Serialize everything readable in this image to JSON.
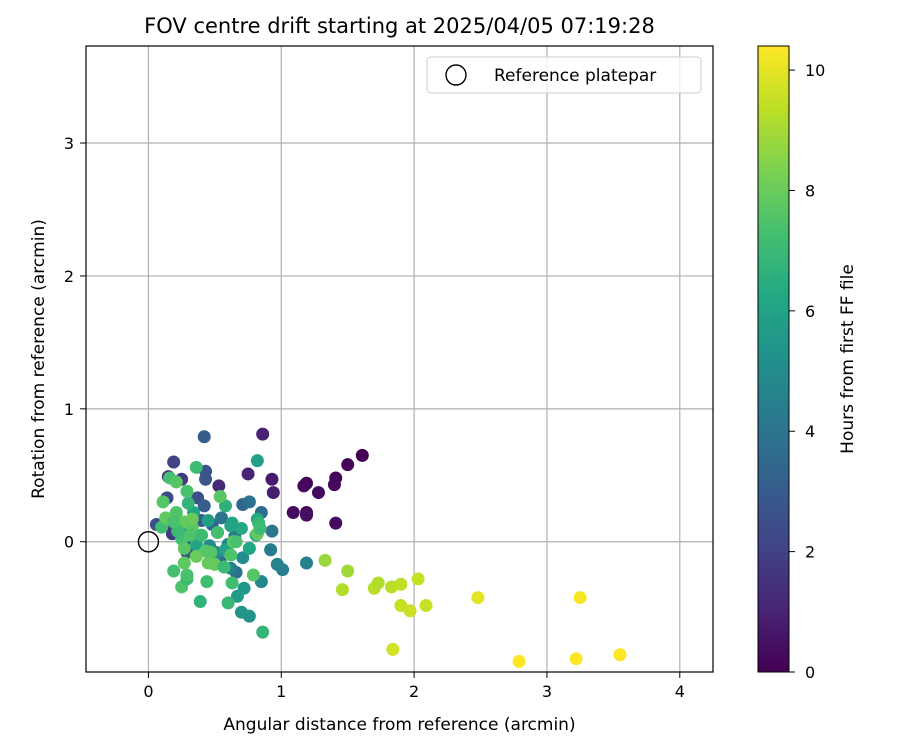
{
  "chart_data": {
    "type": "scatter",
    "title": "FOV centre drift starting at 2025/04/05 07:19:28",
    "xlabel": "Angular distance from reference (arcmin)",
    "ylabel": "Rotation from reference (arcmin)",
    "xlim": [
      -0.47,
      4.25
    ],
    "ylim": [
      -0.98,
      3.73
    ],
    "xticks": [
      0,
      1,
      2,
      3,
      4
    ],
    "yticks": [
      0,
      1,
      2,
      3
    ],
    "grid": true,
    "legend": {
      "placement": "top-right",
      "entries": [
        "Reference platepar"
      ]
    },
    "reference_point": {
      "x": 0,
      "y": 0,
      "label": "Reference platepar"
    },
    "colorbar": {
      "label": "Hours from first FF file",
      "colormap": "viridis",
      "range": [
        0,
        10.4
      ],
      "ticks": [
        0,
        2,
        4,
        6,
        8,
        10
      ]
    },
    "points": [
      [
        1.61,
        0.65,
        0.0
      ],
      [
        1.5,
        0.58,
        0.1
      ],
      [
        1.41,
        0.48,
        0.1
      ],
      [
        1.4,
        0.43,
        0.2
      ],
      [
        1.19,
        0.44,
        0.1
      ],
      [
        1.17,
        0.42,
        0.2
      ],
      [
        1.28,
        0.37,
        0.3
      ],
      [
        1.09,
        0.22,
        0.3
      ],
      [
        1.19,
        0.22,
        0.2
      ],
      [
        1.19,
        0.2,
        0.4
      ],
      [
        1.41,
        0.14,
        0.3
      ],
      [
        0.86,
        0.81,
        1.0
      ],
      [
        0.93,
        0.47,
        0.8
      ],
      [
        0.94,
        0.37,
        0.9
      ],
      [
        0.75,
        0.51,
        1.0
      ],
      [
        0.53,
        0.42,
        1.2
      ],
      [
        0.15,
        0.49,
        1.5
      ],
      [
        0.19,
        0.6,
        2.0
      ],
      [
        0.25,
        0.47,
        1.7
      ],
      [
        0.42,
        0.79,
        3.0
      ],
      [
        0.43,
        0.53,
        2.6
      ],
      [
        0.43,
        0.47,
        2.8
      ],
      [
        0.37,
        0.33,
        2.5
      ],
      [
        0.14,
        0.33,
        2.3
      ],
      [
        0.19,
        0.1,
        2.2
      ],
      [
        0.06,
        0.13,
        2.5
      ],
      [
        0.18,
        0.06,
        1.8
      ],
      [
        0.27,
        0.07,
        2.1
      ],
      [
        0.3,
        0.0,
        2.4
      ],
      [
        0.29,
        -0.08,
        2.7
      ],
      [
        0.4,
        0.16,
        2.9
      ],
      [
        0.42,
        0.27,
        3.1
      ],
      [
        0.48,
        0.13,
        3.3
      ],
      [
        0.54,
        -0.15,
        3.6
      ],
      [
        0.66,
        -0.23,
        3.8
      ],
      [
        0.71,
        0.28,
        3.4
      ],
      [
        0.76,
        0.3,
        3.9
      ],
      [
        0.85,
        0.22,
        3.7
      ],
      [
        0.93,
        0.08,
        4.1
      ],
      [
        0.92,
        -0.06,
        4.3
      ],
      [
        1.01,
        -0.21,
        4.4
      ],
      [
        0.97,
        -0.17,
        4.6
      ],
      [
        0.85,
        -0.3,
        4.8
      ],
      [
        0.62,
        -0.2,
        4.5
      ],
      [
        0.65,
        0.04,
        4.2
      ],
      [
        0.55,
        0.18,
        4.0
      ],
      [
        0.6,
        -0.02,
        4.7
      ],
      [
        0.71,
        -0.12,
        5.0
      ],
      [
        0.51,
        -0.08,
        5.1
      ],
      [
        0.46,
        -0.03,
        4.9
      ],
      [
        1.19,
        -0.16,
        4.5
      ],
      [
        0.82,
        0.61,
        5.9
      ],
      [
        0.82,
        0.17,
        6.3
      ],
      [
        0.72,
        -0.35,
        5.6
      ],
      [
        0.67,
        -0.41,
        5.7
      ],
      [
        0.7,
        -0.53,
        5.4
      ],
      [
        0.76,
        -0.56,
        5.3
      ],
      [
        0.86,
        -0.68,
        6.8
      ],
      [
        0.6,
        -0.46,
        6.9
      ],
      [
        0.39,
        -0.45,
        6.7
      ],
      [
        0.36,
        -0.02,
        6.1
      ],
      [
        0.35,
        0.05,
        6.5
      ],
      [
        0.24,
        0.12,
        6.4
      ],
      [
        0.34,
        0.22,
        6.2
      ],
      [
        0.3,
        0.29,
        6.8
      ],
      [
        0.45,
        0.16,
        5.8
      ],
      [
        0.52,
        0.07,
        6.6
      ],
      [
        0.58,
        -0.06,
        6.0
      ],
      [
        0.63,
        0.14,
        6.1
      ],
      [
        0.7,
        0.1,
        6.3
      ],
      [
        0.58,
        0.27,
        6.6
      ],
      [
        0.62,
        0.12,
        6.0
      ],
      [
        0.76,
        -0.05,
        6.2
      ],
      [
        0.81,
        0.05,
        6.4
      ],
      [
        0.83,
        0.14,
        6.9
      ],
      [
        0.36,
        0.56,
        7.1
      ],
      [
        0.11,
        0.3,
        7.6
      ],
      [
        0.16,
        0.48,
        7.3
      ],
      [
        0.21,
        0.45,
        7.6
      ],
      [
        0.29,
        0.38,
        7.4
      ],
      [
        0.1,
        0.11,
        7.2
      ],
      [
        0.13,
        0.18,
        7.8
      ],
      [
        0.21,
        0.22,
        7.5
      ],
      [
        0.27,
        0.15,
        7.9
      ],
      [
        0.33,
        0.11,
        7.7
      ],
      [
        0.4,
        0.05,
        7.1
      ],
      [
        0.43,
        -0.07,
        7.6
      ],
      [
        0.19,
        -0.22,
        7.3
      ],
      [
        0.25,
        -0.34,
        7.5
      ],
      [
        0.29,
        -0.28,
        7.0
      ],
      [
        0.29,
        -0.25,
        7.4
      ],
      [
        0.27,
        -0.16,
        7.8
      ],
      [
        0.44,
        -0.3,
        7.2
      ],
      [
        0.47,
        -0.08,
        7.6
      ],
      [
        0.5,
        -0.17,
        7.9
      ],
      [
        0.54,
        0.34,
        7.7
      ],
      [
        0.52,
        0.07,
        7.3
      ],
      [
        0.57,
        -0.19,
        7.0
      ],
      [
        0.62,
        -0.1,
        7.5
      ],
      [
        0.64,
        0.0,
        7.8
      ],
      [
        0.66,
        0.0,
        7.4
      ],
      [
        0.63,
        -0.31,
        7.2
      ],
      [
        0.79,
        -0.25,
        7.6
      ],
      [
        0.82,
        0.06,
        7.9
      ],
      [
        0.84,
        0.1,
        7.1
      ],
      [
        0.25,
        0.02,
        7.3
      ],
      [
        0.27,
        -0.05,
        7.7
      ],
      [
        0.31,
        0.05,
        7.5
      ],
      [
        0.33,
        0.17,
        8.0
      ],
      [
        0.36,
        -0.11,
        8.0
      ],
      [
        0.45,
        -0.16,
        7.9
      ],
      [
        0.22,
        0.08,
        7.0
      ],
      [
        0.19,
        0.15,
        7.4
      ],
      [
        1.33,
        -0.14,
        8.8
      ],
      [
        1.5,
        -0.22,
        8.9
      ],
      [
        1.46,
        -0.36,
        9.2
      ],
      [
        1.7,
        -0.35,
        9.3
      ],
      [
        1.73,
        -0.31,
        9.2
      ],
      [
        1.83,
        -0.34,
        9.3
      ],
      [
        1.9,
        -0.32,
        9.4
      ],
      [
        2.03,
        -0.28,
        9.5
      ],
      [
        1.9,
        -0.48,
        9.5
      ],
      [
        1.97,
        -0.52,
        9.6
      ],
      [
        2.09,
        -0.48,
        9.5
      ],
      [
        1.84,
        -0.81,
        9.7
      ],
      [
        2.48,
        -0.42,
        10.0
      ],
      [
        2.79,
        -0.9,
        10.4
      ],
      [
        3.22,
        -0.88,
        10.4
      ],
      [
        3.25,
        -0.42,
        10.3
      ],
      [
        3.55,
        -0.85,
        10.4
      ]
    ]
  }
}
